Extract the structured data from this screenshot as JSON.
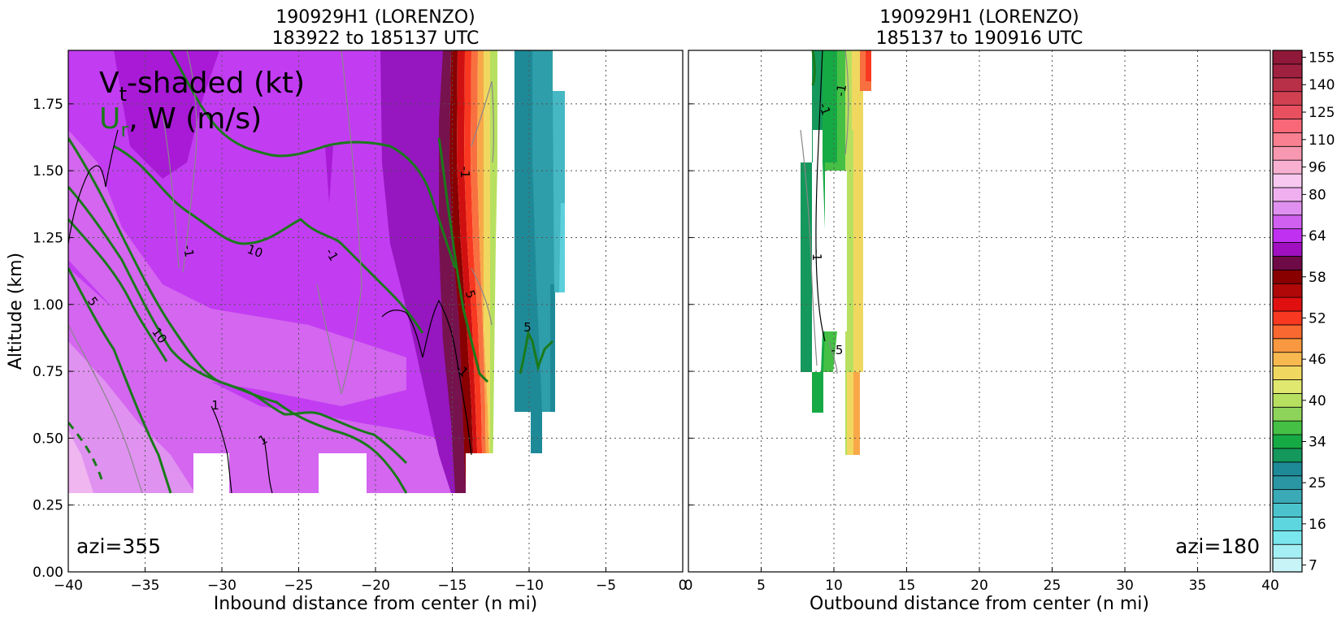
{
  "chart_data": [
    {
      "type": "contour",
      "title": [
        "190929H1 (LORENZO)",
        "183922 to 185137 UTC"
      ],
      "xlabel": "Inbound distance from center (n mi)",
      "ylabel": "Altitude (km)",
      "xlim": [
        -40,
        0
      ],
      "ylim": [
        0,
        1.95
      ],
      "xticks": [
        -40,
        -35,
        -30,
        -25,
        -20,
        -15,
        -10,
        -5,
        0
      ],
      "yticks": [
        0.0,
        0.25,
        0.5,
        0.75,
        1.0,
        1.25,
        1.5,
        1.75
      ],
      "yticklabels": [
        "0.00",
        "0.25",
        "0.50",
        "0.75",
        "1.00",
        "1.25",
        "1.50",
        "1.75"
      ],
      "grid": true,
      "azimuth_label": "azi=355",
      "annotation_line1": "V",
      "annotation_sub1": "t",
      "annotation_rest1": "-shaded (kt)",
      "annotation_line2a": "U",
      "annotation_sub2": "r",
      "annotation_line2b": ", W (m/s)",
      "contour_labels": [
        "10",
        "10",
        "5",
        "1",
        "1",
        "-1",
        "-1",
        "-1",
        "-1",
        "5",
        "5"
      ]
    },
    {
      "type": "contour",
      "title": [
        "190929H1 (LORENZO)",
        "185137 to 190916 UTC"
      ],
      "xlabel": "Outbound distance from center (n mi)",
      "xlim": [
        0,
        40
      ],
      "ylim": [
        0,
        1.95
      ],
      "xticks": [
        0,
        5,
        10,
        15,
        20,
        25,
        30,
        35,
        40
      ],
      "grid": true,
      "azimuth_label": "azi=180",
      "contour_labels": [
        "-1",
        "-1",
        "-1",
        "-5"
      ]
    }
  ],
  "colorbar": {
    "tick_labels": [
      "7",
      "16",
      "25",
      "34",
      "40",
      "46",
      "52",
      "58",
      "64",
      "80",
      "96",
      "110",
      "125",
      "140",
      "155"
    ],
    "colors": [
      "#c8f4f8",
      "#a4eff4",
      "#7ae6ee",
      "#5dd6e0",
      "#4bc3cc",
      "#3aaab6",
      "#2a96a4",
      "#1e8a98",
      "#14985c",
      "#16aa44",
      "#45c045",
      "#8fd45a",
      "#b8e060",
      "#e0e870",
      "#f0d860",
      "#f8b850",
      "#f89840",
      "#f86830",
      "#f83820",
      "#e01010",
      "#b00808",
      "#880000",
      "#6e0a46",
      "#a010c0",
      "#c030f0",
      "#d060f0",
      "#e090f0",
      "#f0b0f0",
      "#f8c8f0",
      "#f8b0d0",
      "#f898b0",
      "#f88090",
      "#f86878",
      "#e85060",
      "#d04050",
      "#b83048",
      "#a02040",
      "#901838"
    ]
  },
  "colors": {
    "magenta_bg": "#c23cf2",
    "light_magenta": "#dc78f0",
    "dark_purple": "#9616c0",
    "green_contour": "#1a7a1a"
  }
}
